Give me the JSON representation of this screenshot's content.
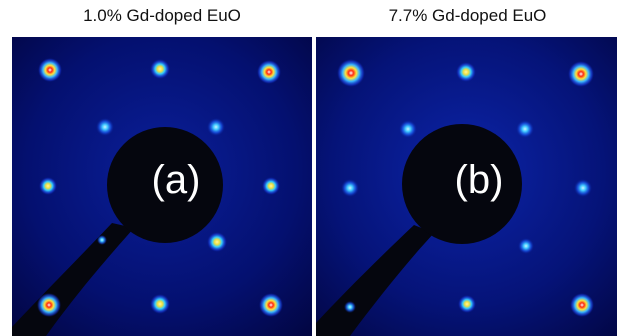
{
  "figure": {
    "panels": [
      {
        "id": "a",
        "title": "1.0% Gd-doped EuO",
        "label": "(a)"
      },
      {
        "id": "b",
        "title": "7.7% Gd-doped EuO",
        "label": "(b)"
      }
    ]
  },
  "colors": {
    "background": "#000a4a",
    "spot_core": "#ff2a10",
    "spot_mid": "#ffe23a",
    "spot_outer": "#2060ff",
    "shadow": "#05060e"
  }
}
